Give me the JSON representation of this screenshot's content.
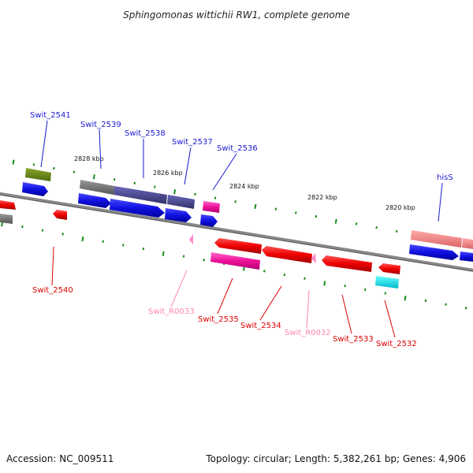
{
  "title": "Sphingomonas wittichii RW1, complete genome",
  "accession": "Accession: NC_009511",
  "summary": "Topology: circular; Length: 5,382,261 bp; Genes: 4,906",
  "scale_labels": [
    "2828 kbp",
    "2826 kbp",
    "2824 kbp",
    "2822 kbp",
    "2820 kbp"
  ],
  "forward_genes": [
    {
      "name": "Swit_2541",
      "color": "#1a1ad0"
    },
    {
      "name": "Swit_2539",
      "color": "#1a1ad0"
    },
    {
      "name": "Swit_2538",
      "color": "#1a1ad0"
    },
    {
      "name": "Swit_2537",
      "color": "#1a1ad0"
    },
    {
      "name": "Swit_2536",
      "color": "#1a1ad0"
    },
    {
      "name": "hisS",
      "color": "#1a1ad0"
    }
  ],
  "reverse_genes": [
    {
      "name": "Swit_2540",
      "color": "#dd0000"
    },
    {
      "name": "Swit_R0033",
      "color": "#ff88aa"
    },
    {
      "name": "Swit_2535",
      "color": "#dd0000"
    },
    {
      "name": "Swit_2534",
      "color": "#dd0000"
    },
    {
      "name": "Swit_R0032",
      "color": "#ff88aa"
    },
    {
      "name": "Swit_2533",
      "color": "#dd0000"
    },
    {
      "name": "Swit_2532",
      "color": "#dd0000"
    }
  ]
}
